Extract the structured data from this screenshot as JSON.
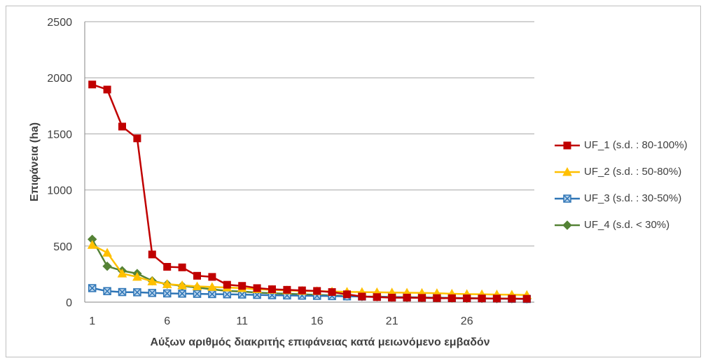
{
  "chart_data": {
    "type": "line",
    "title": "",
    "xlabel": "Αύξων αριθμός διακριτής επιφάνειας κατά μειωνόμενο εμβαδόν",
    "ylabel": "Επιφάνεια (ha)",
    "ylim": [
      0,
      2500
    ],
    "yticks": [
      "0",
      "500",
      "1000",
      "1500",
      "2000",
      "2500"
    ],
    "xticks": [
      "1",
      "6",
      "11",
      "16",
      "21",
      "26"
    ],
    "x": [
      1,
      2,
      3,
      4,
      5,
      6,
      7,
      8,
      9,
      10,
      11,
      12,
      13,
      14,
      15,
      16,
      17,
      18,
      19,
      20,
      21,
      22,
      23,
      24,
      25,
      26,
      27,
      28,
      29,
      30
    ],
    "grid": true,
    "legend_position": "right",
    "series": [
      {
        "name": "UF_1 (s.d. : 80-100%)",
        "color": "#c00000",
        "marker": "square",
        "values": [
          1940,
          1895,
          1565,
          1460,
          425,
          315,
          310,
          235,
          225,
          155,
          145,
          125,
          115,
          110,
          105,
          100,
          90,
          70,
          50,
          45,
          40,
          40,
          38,
          36,
          35,
          34,
          33,
          32,
          31,
          30
        ]
      },
      {
        "name": "UF_2 (s.d. : 50-80%)",
        "color": "#ffc000",
        "marker": "triangle",
        "values": [
          510,
          440,
          255,
          225,
          185,
          160,
          150,
          140,
          135,
          130,
          125,
          115,
          110,
          105,
          100,
          98,
          95,
          92,
          90,
          88,
          86,
          84,
          82,
          80,
          75,
          72,
          70,
          68,
          66,
          64
        ]
      },
      {
        "name": "UF_3 (s.d. : 30-50%)",
        "color": "#2e75b6",
        "marker": "x-square",
        "values": [
          125,
          98,
          90,
          88,
          82,
          78,
          76,
          74,
          72,
          70,
          68,
          65,
          62,
          60,
          58,
          56,
          54,
          52,
          50,
          48,
          46,
          44,
          42,
          40,
          38,
          36,
          34,
          32,
          30,
          28
        ]
      },
      {
        "name": "UF_4 (s.d. < 30%)",
        "color": "#548235",
        "marker": "diamond",
        "values": [
          560,
          320,
          280,
          255,
          190,
          160,
          145,
          130,
          115,
          100,
          95,
          85,
          80,
          75,
          70,
          65,
          60,
          55,
          50,
          48,
          45,
          42,
          40,
          38,
          36,
          34,
          33,
          32,
          31,
          30
        ]
      }
    ]
  }
}
